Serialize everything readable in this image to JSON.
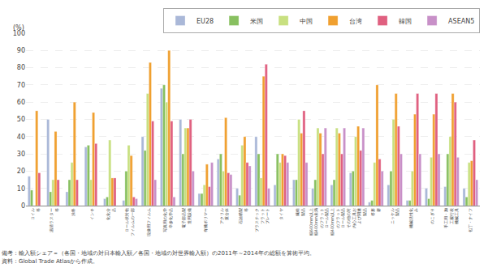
{
  "chart_data": {
    "type": "bar",
    "ylabel": "(%)",
    "categories": [
      "コイル\n等",
      "湯清ラスター\n等",
      "涂料",
      "インキ",
      "化化合\n品",
      "ロール状対物\nフィルムの一部",
      "現像用フィルム",
      "写真用の化学\n辛参化学品",
      "電子部品製\n造用設備",
      "有機ポリマー",
      "アクリル\n重合体",
      "石油精製\n等",
      "プラスチック\nフラット\nプレート",
      "タイヤ",
      "繊維\n製品",
      "幅600mm以上\n幅400mm未満\nのフラット\nロール製品",
      "幅400mm以上\nのフラット\nロール製品",
      "その他の対\n内心工具お\nよび関連\n製品",
      "答形\n赛",
      "ニッケル\n製品",
      "機械活性化\nみ",
      "のこぎり",
      "手工用・加\n工履行表\n機械工具",
      "包丁・ナイフ"
    ],
    "series": [
      {
        "name": "EU28",
        "color": "#aab8d8",
        "values": [
          17,
          50,
          8,
          34,
          4,
          3,
          40,
          68,
          50,
          7,
          27,
          10,
          40,
          12,
          15,
          10,
          12,
          19,
          2,
          12,
          3,
          10,
          11,
          10
        ]
      },
      {
        "name": "米国",
        "color": "#88c060",
        "values": [
          9,
          8,
          15,
          35,
          5,
          20,
          32,
          70,
          30,
          7,
          30,
          6,
          30,
          30,
          15,
          15,
          15,
          20,
          3,
          20,
          3,
          4,
          30,
          5
        ]
      },
      {
        "name": "中国",
        "color": "#c8e080",
        "values": [
          0,
          15,
          25,
          15,
          38,
          35,
          65,
          60,
          45,
          12,
          20,
          35,
          16,
          25,
          50,
          45,
          45,
          40,
          25,
          50,
          20,
          28,
          40,
          25
        ]
      },
      {
        "name": "台湾",
        "color": "#f0a030",
        "values": [
          55,
          43,
          60,
          54,
          16,
          29,
          83,
          90,
          45,
          24,
          51,
          40,
          75,
          30,
          42,
          42,
          42,
          46,
          70,
          65,
          53,
          53,
          65,
          26
        ]
      },
      {
        "name": "韓国",
        "color": "#e06080",
        "values": [
          19,
          15,
          15,
          36,
          16,
          5,
          49,
          49,
          50,
          11,
          19,
          25,
          82,
          29,
          55,
          30,
          30,
          32,
          27,
          46,
          65,
          65,
          60,
          38
        ]
      },
      {
        "name": "ASEAN5",
        "color": "#c890c8",
        "values": [
          0,
          0,
          0,
          0,
          0,
          4,
          15,
          5,
          20,
          25,
          18,
          23,
          10,
          25,
          25,
          45,
          45,
          45,
          20,
          30,
          30,
          30,
          28,
          15
        ]
      }
    ],
    "ylim": [
      0,
      100
    ],
    "yticks": [
      0,
      10,
      20,
      30,
      40,
      50,
      60,
      70,
      80,
      90,
      100
    ],
    "grid": true,
    "legend": "upper right",
    "annotations": [
      "備考：輸入額シェア＝（各国・地域の対日本輸入額／各国・地域の対世界輸入額）の2011年～2014年の総額を算術平均。",
      "資料：Global Trade Atlasから作成。"
    ]
  }
}
